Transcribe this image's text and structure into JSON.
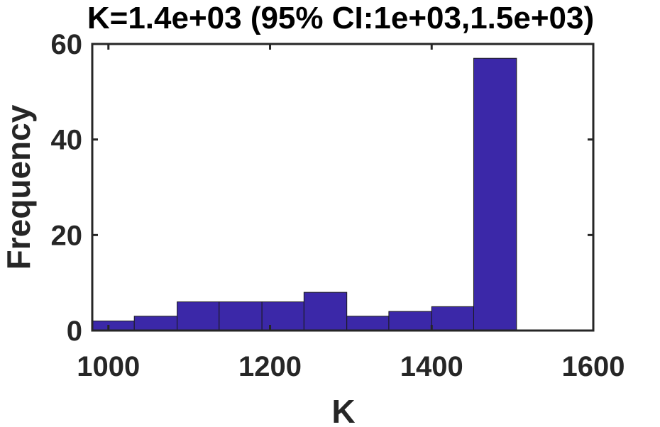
{
  "chart_data": {
    "type": "bar",
    "title": "K=1.4e+03 (95% CI:1e+03,1.5e+03)",
    "xlabel": "K",
    "ylabel": "Frequency",
    "xlim": [
      980,
      1600
    ],
    "ylim": [
      0,
      60
    ],
    "xticks": [
      "1000",
      "1200",
      "1400",
      "1600"
    ],
    "yticks": [
      "0",
      "20",
      "40",
      "60"
    ],
    "grid": false,
    "bar_color": "#3b28a8",
    "bins": [
      {
        "x0": 980,
        "x1": 1032,
        "count": 2
      },
      {
        "x0": 1032,
        "x1": 1085,
        "count": 3
      },
      {
        "x0": 1085,
        "x1": 1137,
        "count": 6
      },
      {
        "x0": 1137,
        "x1": 1190,
        "count": 6
      },
      {
        "x0": 1190,
        "x1": 1242,
        "count": 6
      },
      {
        "x0": 1242,
        "x1": 1295,
        "count": 8
      },
      {
        "x0": 1295,
        "x1": 1347,
        "count": 3
      },
      {
        "x0": 1347,
        "x1": 1400,
        "count": 4
      },
      {
        "x0": 1400,
        "x1": 1452,
        "count": 5
      },
      {
        "x0": 1452,
        "x1": 1505,
        "count": 57
      }
    ]
  }
}
